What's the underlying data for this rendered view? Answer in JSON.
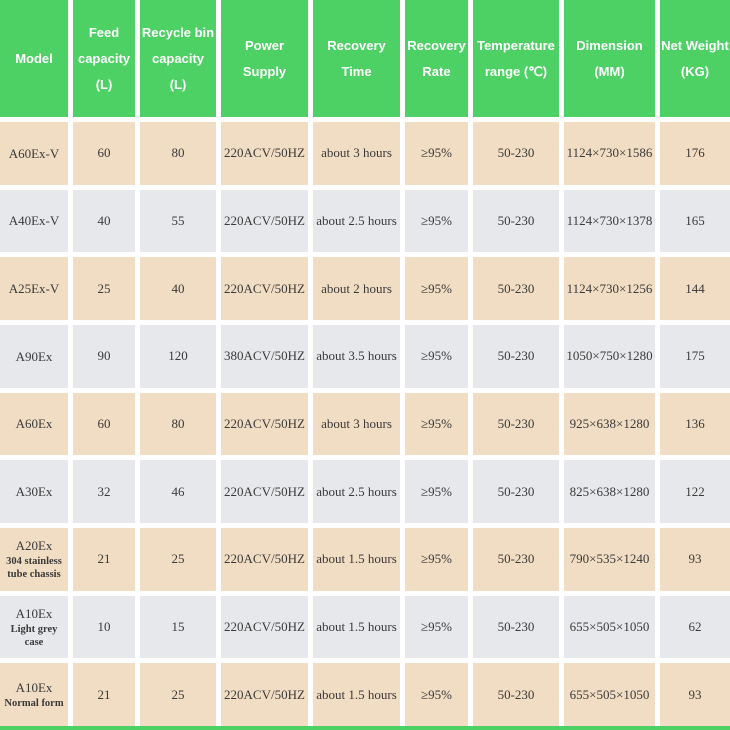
{
  "colors": {
    "header_bg": "#4ed164",
    "row_odd_bg": "#f1ddc3",
    "row_even_bg": "#e6e8eb",
    "gap_color": "#ffffff",
    "header_text": "#ffffff",
    "body_text": "#3a3a3a"
  },
  "chart_data": {
    "type": "table",
    "columns": [
      {
        "id": "model",
        "lines": [
          "Model"
        ]
      },
      {
        "id": "feed_capacity",
        "lines": [
          "Feed",
          "capacity",
          "(L)"
        ]
      },
      {
        "id": "recycle_bin_capacity",
        "lines": [
          "Recycle bin",
          "capacity",
          "(L)"
        ]
      },
      {
        "id": "power_supply",
        "lines": [
          "Power",
          "Supply"
        ]
      },
      {
        "id": "recovery_time",
        "lines": [
          "Recovery",
          "Time"
        ]
      },
      {
        "id": "recovery_rate",
        "lines": [
          "Recovery",
          "Rate"
        ]
      },
      {
        "id": "temperature_range",
        "lines": [
          "Temperature",
          "range (℃)"
        ]
      },
      {
        "id": "dimension",
        "lines": [
          "Dimension",
          "(MM)"
        ]
      },
      {
        "id": "net_weight",
        "lines": [
          "Net Weight",
          "(KG)"
        ]
      }
    ],
    "rows": [
      {
        "model": "A60Ex-V",
        "note": "",
        "values": [
          "60",
          "80",
          "220ACV/50HZ",
          "about 3 hours",
          "≥95%",
          "50-230",
          "1124×730×1586",
          "176"
        ]
      },
      {
        "model": "A40Ex-V",
        "note": "",
        "values": [
          "40",
          "55",
          "220ACV/50HZ",
          "about 2.5 hours",
          "≥95%",
          "50-230",
          "1124×730×1378",
          "165"
        ]
      },
      {
        "model": "A25Ex-V",
        "note": "",
        "values": [
          "25",
          "40",
          "220ACV/50HZ",
          "about 2 hours",
          "≥95%",
          "50-230",
          "1124×730×1256",
          "144"
        ]
      },
      {
        "model": "A90Ex",
        "note": "",
        "values": [
          "90",
          "120",
          "380ACV/50HZ",
          "about 3.5 hours",
          "≥95%",
          "50-230",
          "1050×750×1280",
          "175"
        ]
      },
      {
        "model": "A60Ex",
        "note": "",
        "values": [
          "60",
          "80",
          "220ACV/50HZ",
          "about 3 hours",
          "≥95%",
          "50-230",
          "925×638×1280",
          "136"
        ]
      },
      {
        "model": "A30Ex",
        "note": "",
        "values": [
          "32",
          "46",
          "220ACV/50HZ",
          "about 2.5 hours",
          "≥95%",
          "50-230",
          "825×638×1280",
          "122"
        ]
      },
      {
        "model": "A20Ex",
        "note": "304 stainless tube chassis",
        "values": [
          "21",
          "25",
          "220ACV/50HZ",
          "about 1.5 hours",
          "≥95%",
          "50-230",
          "790×535×1240",
          "93"
        ]
      },
      {
        "model": "A10Ex",
        "note": "Light grey case",
        "values": [
          "10",
          "15",
          "220ACV/50HZ",
          "about 1.5 hours",
          "≥95%",
          "50-230",
          "655×505×1050",
          "62"
        ]
      },
      {
        "model": "A10Ex",
        "note": "Normal form",
        "values": [
          "21",
          "25",
          "220ACV/50HZ",
          "about 1.5 hours",
          "≥95%",
          "50-230",
          "655×505×1050",
          "93"
        ]
      }
    ]
  }
}
